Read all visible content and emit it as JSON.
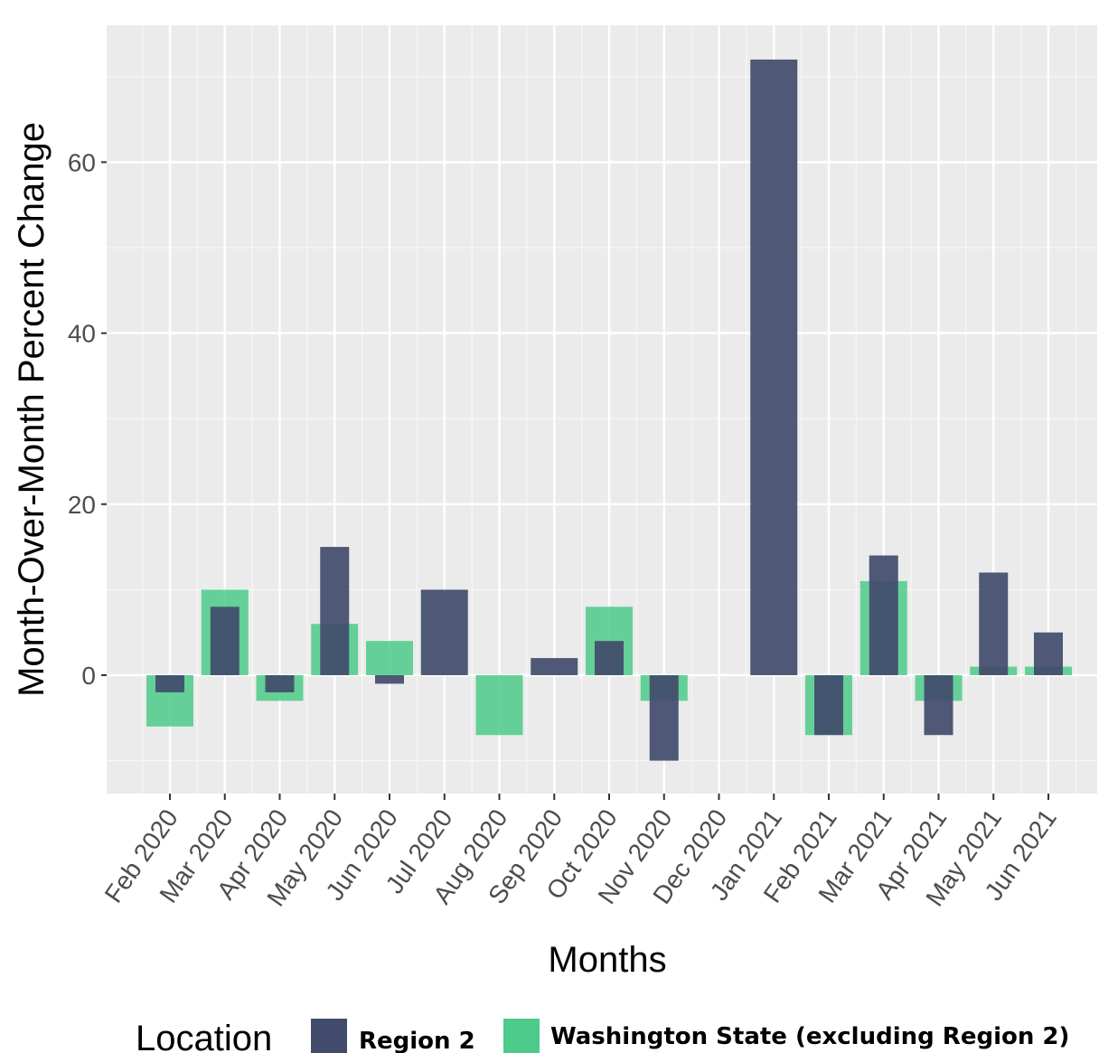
{
  "colors": {
    "region2": "#414b6b",
    "washington": "#4ccb8a",
    "panel": "#ebebeb",
    "grid": "#ffffff"
  },
  "chart_data": {
    "type": "bar",
    "xlabel": "Months",
    "ylabel": "Month-Over-Month Percent Change",
    "categories": [
      "Feb 2020",
      "Mar 2020",
      "Apr 2020",
      "May 2020",
      "Jun 2020",
      "Jul 2020",
      "Aug 2020",
      "Sep 2020",
      "Oct 2020",
      "Nov 2020",
      "Dec 2020",
      "Jan 2021",
      "Feb 2021",
      "Mar 2021",
      "Apr 2021",
      "May 2021",
      "Jun 2021"
    ],
    "yticks": [
      0,
      20,
      40,
      60
    ],
    "ylim": [
      -14,
      76
    ],
    "grid": true,
    "legend": {
      "title": "Location",
      "position": "bottom",
      "items": [
        "Region 2",
        "Washington State (excluding Region 2)"
      ]
    },
    "series": [
      {
        "name": "Washington State (excluding Region 2)",
        "color": "#4ccb8a",
        "values": [
          -6,
          10,
          -3,
          6,
          4,
          0,
          -7,
          0,
          8,
          -3,
          0,
          0,
          -7,
          11,
          -3,
          1,
          1
        ]
      },
      {
        "name": "Region 2",
        "color": "#414b6b",
        "values": [
          -2,
          8,
          -2,
          15,
          -1,
          10,
          0,
          2,
          4,
          -10,
          0,
          72,
          -7,
          14,
          -7,
          12,
          5
        ]
      }
    ]
  }
}
